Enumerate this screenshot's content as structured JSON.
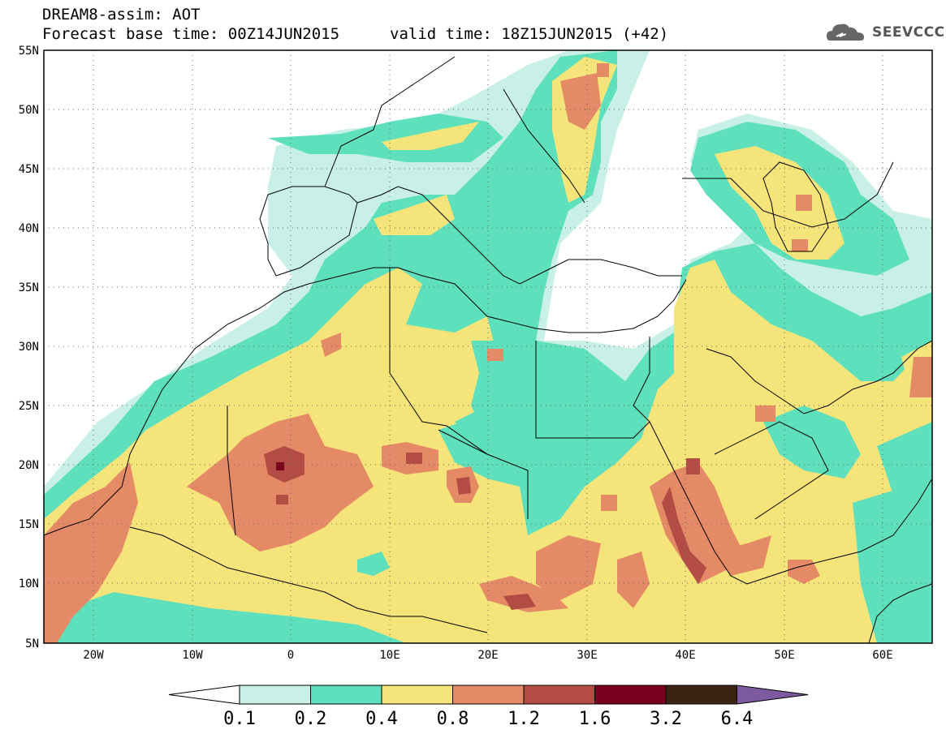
{
  "header": {
    "title": "DREAM8-assim: AOT",
    "forecast_base": "Forecast base time: 00Z14JUN2015",
    "valid_time": "valid time: 18Z15JUN2015 (+42)",
    "logo_text": "SEEVCCC"
  },
  "map": {
    "lon_range": [
      -25,
      65
    ],
    "lat_range": [
      5,
      55
    ],
    "lat_ticks": [
      "55N",
      "50N",
      "45N",
      "40N",
      "35N",
      "30N",
      "25N",
      "20N",
      "15N",
      "10N",
      "5N"
    ],
    "lon_ticks": [
      "20W",
      "10W",
      "0",
      "10E",
      "20E",
      "30E",
      "40E",
      "50E",
      "60E"
    ]
  },
  "legend": {
    "labels": [
      "0.1",
      "0.2",
      "0.4",
      "0.8",
      "1.2",
      "1.6",
      "3.2",
      "6.4"
    ],
    "colors": [
      "#ffffff",
      "#c8f0e6",
      "#5ee0bc",
      "#f5e47a",
      "#e58a66",
      "#b24c44",
      "#7a0020",
      "#3b2414",
      "#7b5aa0"
    ]
  },
  "colors": {
    "ocean_bg": "#ffffff",
    "low": "#c8f0e6",
    "mid": "#5ee0bc",
    "high": "#f5e47a",
    "higher": "#e58a66",
    "peak": "#b24c44",
    "extreme": "#7a0020"
  }
}
